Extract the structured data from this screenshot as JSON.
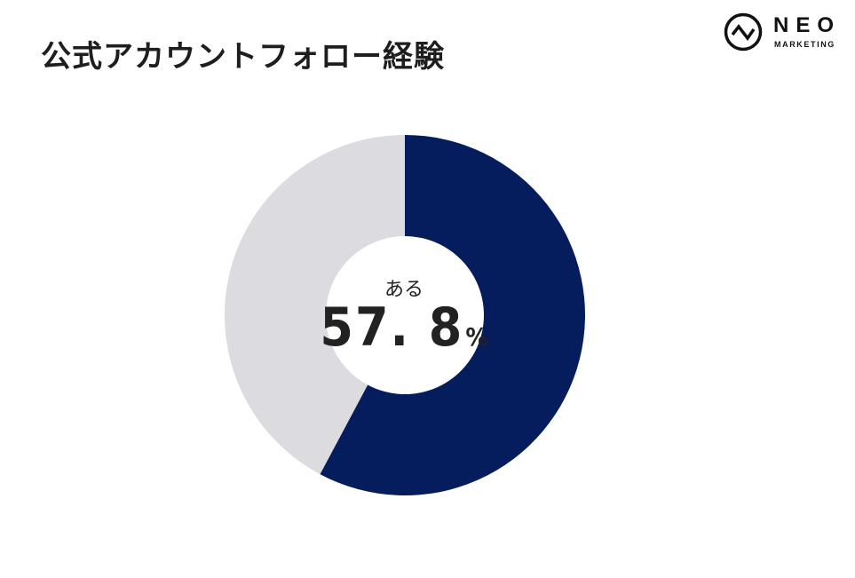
{
  "title": "公式アカウントフォロー経験",
  "logo": {
    "name": "NEO",
    "sub": "MARKETING"
  },
  "colors": {
    "primary": "#051d5c",
    "secondary": "#dcdbdf",
    "text": "#1e1e1e"
  },
  "chart_data": {
    "type": "pie",
    "donut": true,
    "slices": [
      {
        "label": "ある",
        "value": 57.8,
        "color": "#051d5c"
      },
      {
        "value": 42.2,
        "color": "#dcdbdf"
      }
    ],
    "center_label": "ある",
    "center_value": "57. 8",
    "center_unit": "%"
  }
}
